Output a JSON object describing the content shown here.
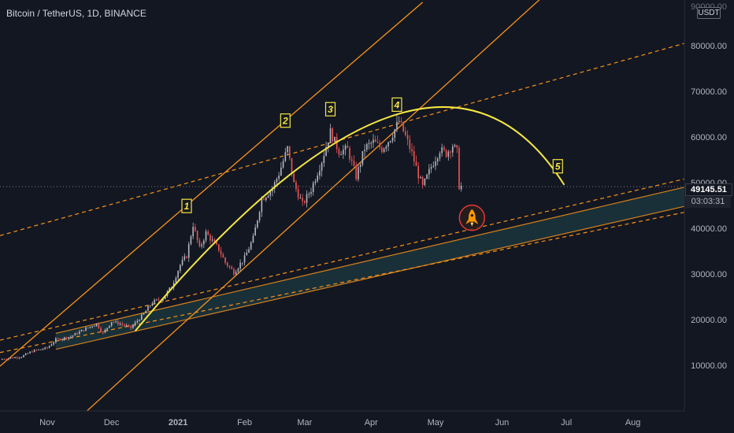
{
  "header": {
    "symbol_title": "Bitcoin / TetherUS, 1D, BINANCE",
    "currency_badge": "USDT"
  },
  "price_panel": {
    "last_price": "49145.51",
    "countdown": "03:03:31"
  },
  "colors": {
    "background": "#131722",
    "up_candle": "#b2b5be",
    "down_candle": "#ef5350",
    "orange_line": "#f7931a",
    "yellow_arc": "#f5e642",
    "channel_fill": "#1e3a40",
    "label_yellow": "#f5e642",
    "rocket_circle": "#e53935",
    "rocket": "#ff9800",
    "axis_text": "#b2b5be"
  },
  "icons": [
    "rocket-icon"
  ],
  "chart_data": {
    "type": "candlestick",
    "title": "Bitcoin / TetherUS, 1D, BINANCE",
    "xlabel": "",
    "ylabel": "",
    "ylim": [
      0,
      90000
    ],
    "xlim": [
      "2020-10-10",
      "2021-08-25"
    ],
    "y_ticks": [
      10000,
      20000,
      30000,
      40000,
      50000,
      60000,
      70000,
      80000
    ],
    "y_tick_labels": [
      "10000.00",
      "20000.00",
      "30000.00",
      "40000.00",
      "50000.00",
      "60000.00",
      "70000.00",
      "80000.00"
    ],
    "top_tick_label": "90000.00",
    "x_ticks": [
      {
        "date": "2020-11-01",
        "label": "Nov"
      },
      {
        "date": "2020-12-01",
        "label": "Dec"
      },
      {
        "date": "2021-01-01",
        "label": "2021"
      },
      {
        "date": "2021-02-01",
        "label": "Feb"
      },
      {
        "date": "2021-03-01",
        "label": "Mar"
      },
      {
        "date": "2021-04-01",
        "label": "Apr"
      },
      {
        "date": "2021-05-01",
        "label": "May"
      },
      {
        "date": "2021-06-01",
        "label": "Jun"
      },
      {
        "date": "2021-07-01",
        "label": "Jul"
      },
      {
        "date": "2021-08-01",
        "label": "Aug"
      }
    ],
    "grid": false,
    "current_price": 49145.51,
    "price_path": [
      [
        "2020-10-10",
        11300
      ],
      [
        "2020-10-20",
        11900
      ],
      [
        "2020-10-25",
        13100
      ],
      [
        "2020-11-01",
        13800
      ],
      [
        "2020-11-05",
        15600
      ],
      [
        "2020-11-12",
        16300
      ],
      [
        "2020-11-18",
        17800
      ],
      [
        "2020-11-24",
        19100
      ],
      [
        "2020-11-27",
        17000
      ],
      [
        "2020-12-01",
        19600
      ],
      [
        "2020-12-05",
        19100
      ],
      [
        "2020-12-10",
        18200
      ],
      [
        "2020-12-16",
        21300
      ],
      [
        "2020-12-20",
        23800
      ],
      [
        "2020-12-25",
        24700
      ],
      [
        "2020-12-29",
        27300
      ],
      [
        "2021-01-02",
        32000
      ],
      [
        "2021-01-05",
        34000
      ],
      [
        "2021-01-08",
        40800
      ],
      [
        "2021-01-11",
        35500
      ],
      [
        "2021-01-14",
        39000
      ],
      [
        "2021-01-20",
        35400
      ],
      [
        "2021-01-23",
        32500
      ],
      [
        "2021-01-27",
        30400
      ],
      [
        "2021-02-01",
        33500
      ],
      [
        "2021-02-05",
        37800
      ],
      [
        "2021-02-09",
        46400
      ],
      [
        "2021-02-14",
        48700
      ],
      [
        "2021-02-17",
        52000
      ],
      [
        "2021-02-21",
        57500
      ],
      [
        "2021-02-24",
        49700
      ],
      [
        "2021-02-28",
        45200
      ],
      [
        "2021-03-04",
        48500
      ],
      [
        "2021-03-09",
        54800
      ],
      [
        "2021-03-13",
        61100
      ],
      [
        "2021-03-17",
        56900
      ],
      [
        "2021-03-21",
        57300
      ],
      [
        "2021-03-25",
        51300
      ],
      [
        "2021-03-29",
        57600
      ],
      [
        "2021-04-02",
        58900
      ],
      [
        "2021-04-06",
        57400
      ],
      [
        "2021-04-10",
        59800
      ],
      [
        "2021-04-14",
        63500
      ],
      [
        "2021-04-17",
        60100
      ],
      [
        "2021-04-20",
        56400
      ],
      [
        "2021-04-23",
        51700
      ],
      [
        "2021-04-25",
        49000
      ],
      [
        "2021-04-29",
        53500
      ],
      [
        "2021-05-03",
        57200
      ],
      [
        "2021-05-06",
        56400
      ],
      [
        "2021-05-09",
        58200
      ],
      [
        "2021-05-11",
        56700
      ],
      [
        "2021-05-12",
        49300
      ],
      [
        "2021-05-13",
        49145
      ]
    ],
    "annotations": [
      {
        "label": "1",
        "date": "2021-01-05",
        "value": 44800
      },
      {
        "label": "2",
        "date": "2021-02-20",
        "value": 63500
      },
      {
        "label": "3",
        "date": "2021-03-13",
        "value": 66000
      },
      {
        "label": "4",
        "date": "2021-04-13",
        "value": 67000
      },
      {
        "label": "5",
        "date": "2021-06-27",
        "value": 53500
      }
    ],
    "drawings": {
      "arc": {
        "start": [
          "2020-12-12",
          17500
        ],
        "peak": [
          "2021-04-10",
          64500
        ],
        "end": [
          "2021-06-30",
          49500
        ]
      },
      "channel_lower": [
        [
          "2020-11-05",
          13500
        ],
        [
          "2021-08-25",
          44800
        ]
      ],
      "channel_upper": [
        [
          "2020-11-05",
          17000
        ],
        [
          "2021-08-25",
          49000
        ]
      ],
      "dashed_lines": [
        [
          [
            "2020-10-10",
            12800
          ],
          [
            "2021-08-25",
            43500
          ]
        ],
        [
          [
            "2020-10-10",
            15500
          ],
          [
            "2021-08-25",
            50800
          ]
        ],
        [
          [
            "2020-10-10",
            38400
          ],
          [
            "2021-08-25",
            80500
          ]
        ]
      ],
      "solid_lines": [
        [
          [
            "2020-10-10",
            9800
          ],
          [
            "2021-04-25",
            89500
          ]
        ],
        [
          [
            "2020-11-16",
            -1500
          ],
          [
            "2021-06-30",
            95000
          ]
        ]
      ],
      "rocket_marker": [
        "2021-05-18",
        42300
      ]
    }
  }
}
